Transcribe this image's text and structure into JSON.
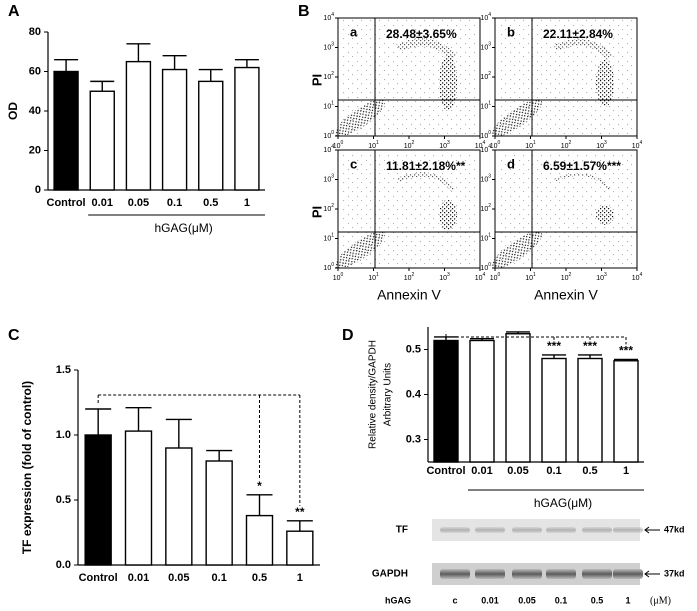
{
  "panel_labels": [
    "A",
    "B",
    "C",
    "D"
  ],
  "chart_data": [
    {
      "type": "bar",
      "ylabel": "OD",
      "categories": [
        "Control",
        "0.01",
        "0.05",
        "0.1",
        "0.5",
        "1"
      ],
      "values": [
        60,
        50,
        65,
        61,
        55,
        62
      ],
      "errors": [
        6,
        5,
        9,
        7,
        6,
        4
      ],
      "colors": [
        "#000000",
        "#ffffff",
        "#ffffff",
        "#ffffff",
        "#ffffff",
        "#ffffff"
      ],
      "ylim": [
        0,
        80
      ],
      "yticks": [
        0,
        20,
        40,
        60,
        80
      ],
      "group_label": "hGAG(μM)"
    },
    {
      "type": "bar",
      "ylabel": "TF expression (fold of control)",
      "categories": [
        "Control",
        "0.01",
        "0.05",
        "0.1",
        "0.5",
        "1"
      ],
      "values": [
        1.0,
        1.03,
        0.9,
        0.8,
        0.38,
        0.26
      ],
      "errors": [
        0.2,
        0.18,
        0.22,
        0.08,
        0.16,
        0.08
      ],
      "colors": [
        "#000000",
        "#ffffff",
        "#ffffff",
        "#ffffff",
        "#ffffff",
        "#ffffff"
      ],
      "significance": [
        null,
        null,
        null,
        null,
        "*",
        "**"
      ],
      "ylim": [
        0,
        1.5
      ],
      "yticks": [
        {
          "value": 0,
          "label": "0.0"
        },
        0.5,
        {
          "value": 1,
          "label": "1.0"
        },
        1.5
      ]
    },
    {
      "type": "bar",
      "ylabel": [
        "Relative density/GAPDH",
        "Arbitrary Units"
      ],
      "categories": [
        "Control",
        "0.01",
        "0.05",
        "0.1",
        "0.5",
        "1"
      ],
      "values": [
        0.52,
        0.52,
        0.535,
        0.48,
        0.48,
        0.475
      ],
      "errors": [
        0.008,
        0.004,
        0.004,
        0.008,
        0.008,
        0.003
      ],
      "colors": [
        "#000000",
        "#ffffff",
        "#ffffff",
        "#ffffff",
        "#ffffff",
        "#ffffff"
      ],
      "significance": [
        null,
        null,
        null,
        "***",
        "***",
        "***"
      ],
      "ylim": [
        0.25,
        0.55
      ],
      "yticks": [
        0.3,
        0.4,
        0.5
      ],
      "group_label": "hGAG(μM)"
    }
  ],
  "flow_cytometry": {
    "ylabel": "PI",
    "xlabel": "Annexin V",
    "tick_base": "10",
    "tick_exponents": [
      0,
      1,
      2,
      3,
      4
    ],
    "panels": [
      {
        "letter": "a",
        "annotation": "28.48±3.65%"
      },
      {
        "letter": "b",
        "annotation": "22.11±2.84%"
      },
      {
        "letter": "c",
        "annotation": "11.81±2.18%**"
      },
      {
        "letter": "d",
        "annotation": "6.59±1.57%***"
      }
    ]
  },
  "western_blot": {
    "rows": [
      {
        "name": "TF",
        "size": "47kd"
      },
      {
        "name": "GAPDH",
        "size": "37kd"
      }
    ],
    "lane_title": "hGAG",
    "lanes": [
      "c",
      "0.01",
      "0.05",
      "0.1",
      "0.5",
      "1"
    ],
    "unit": "(μM)"
  }
}
